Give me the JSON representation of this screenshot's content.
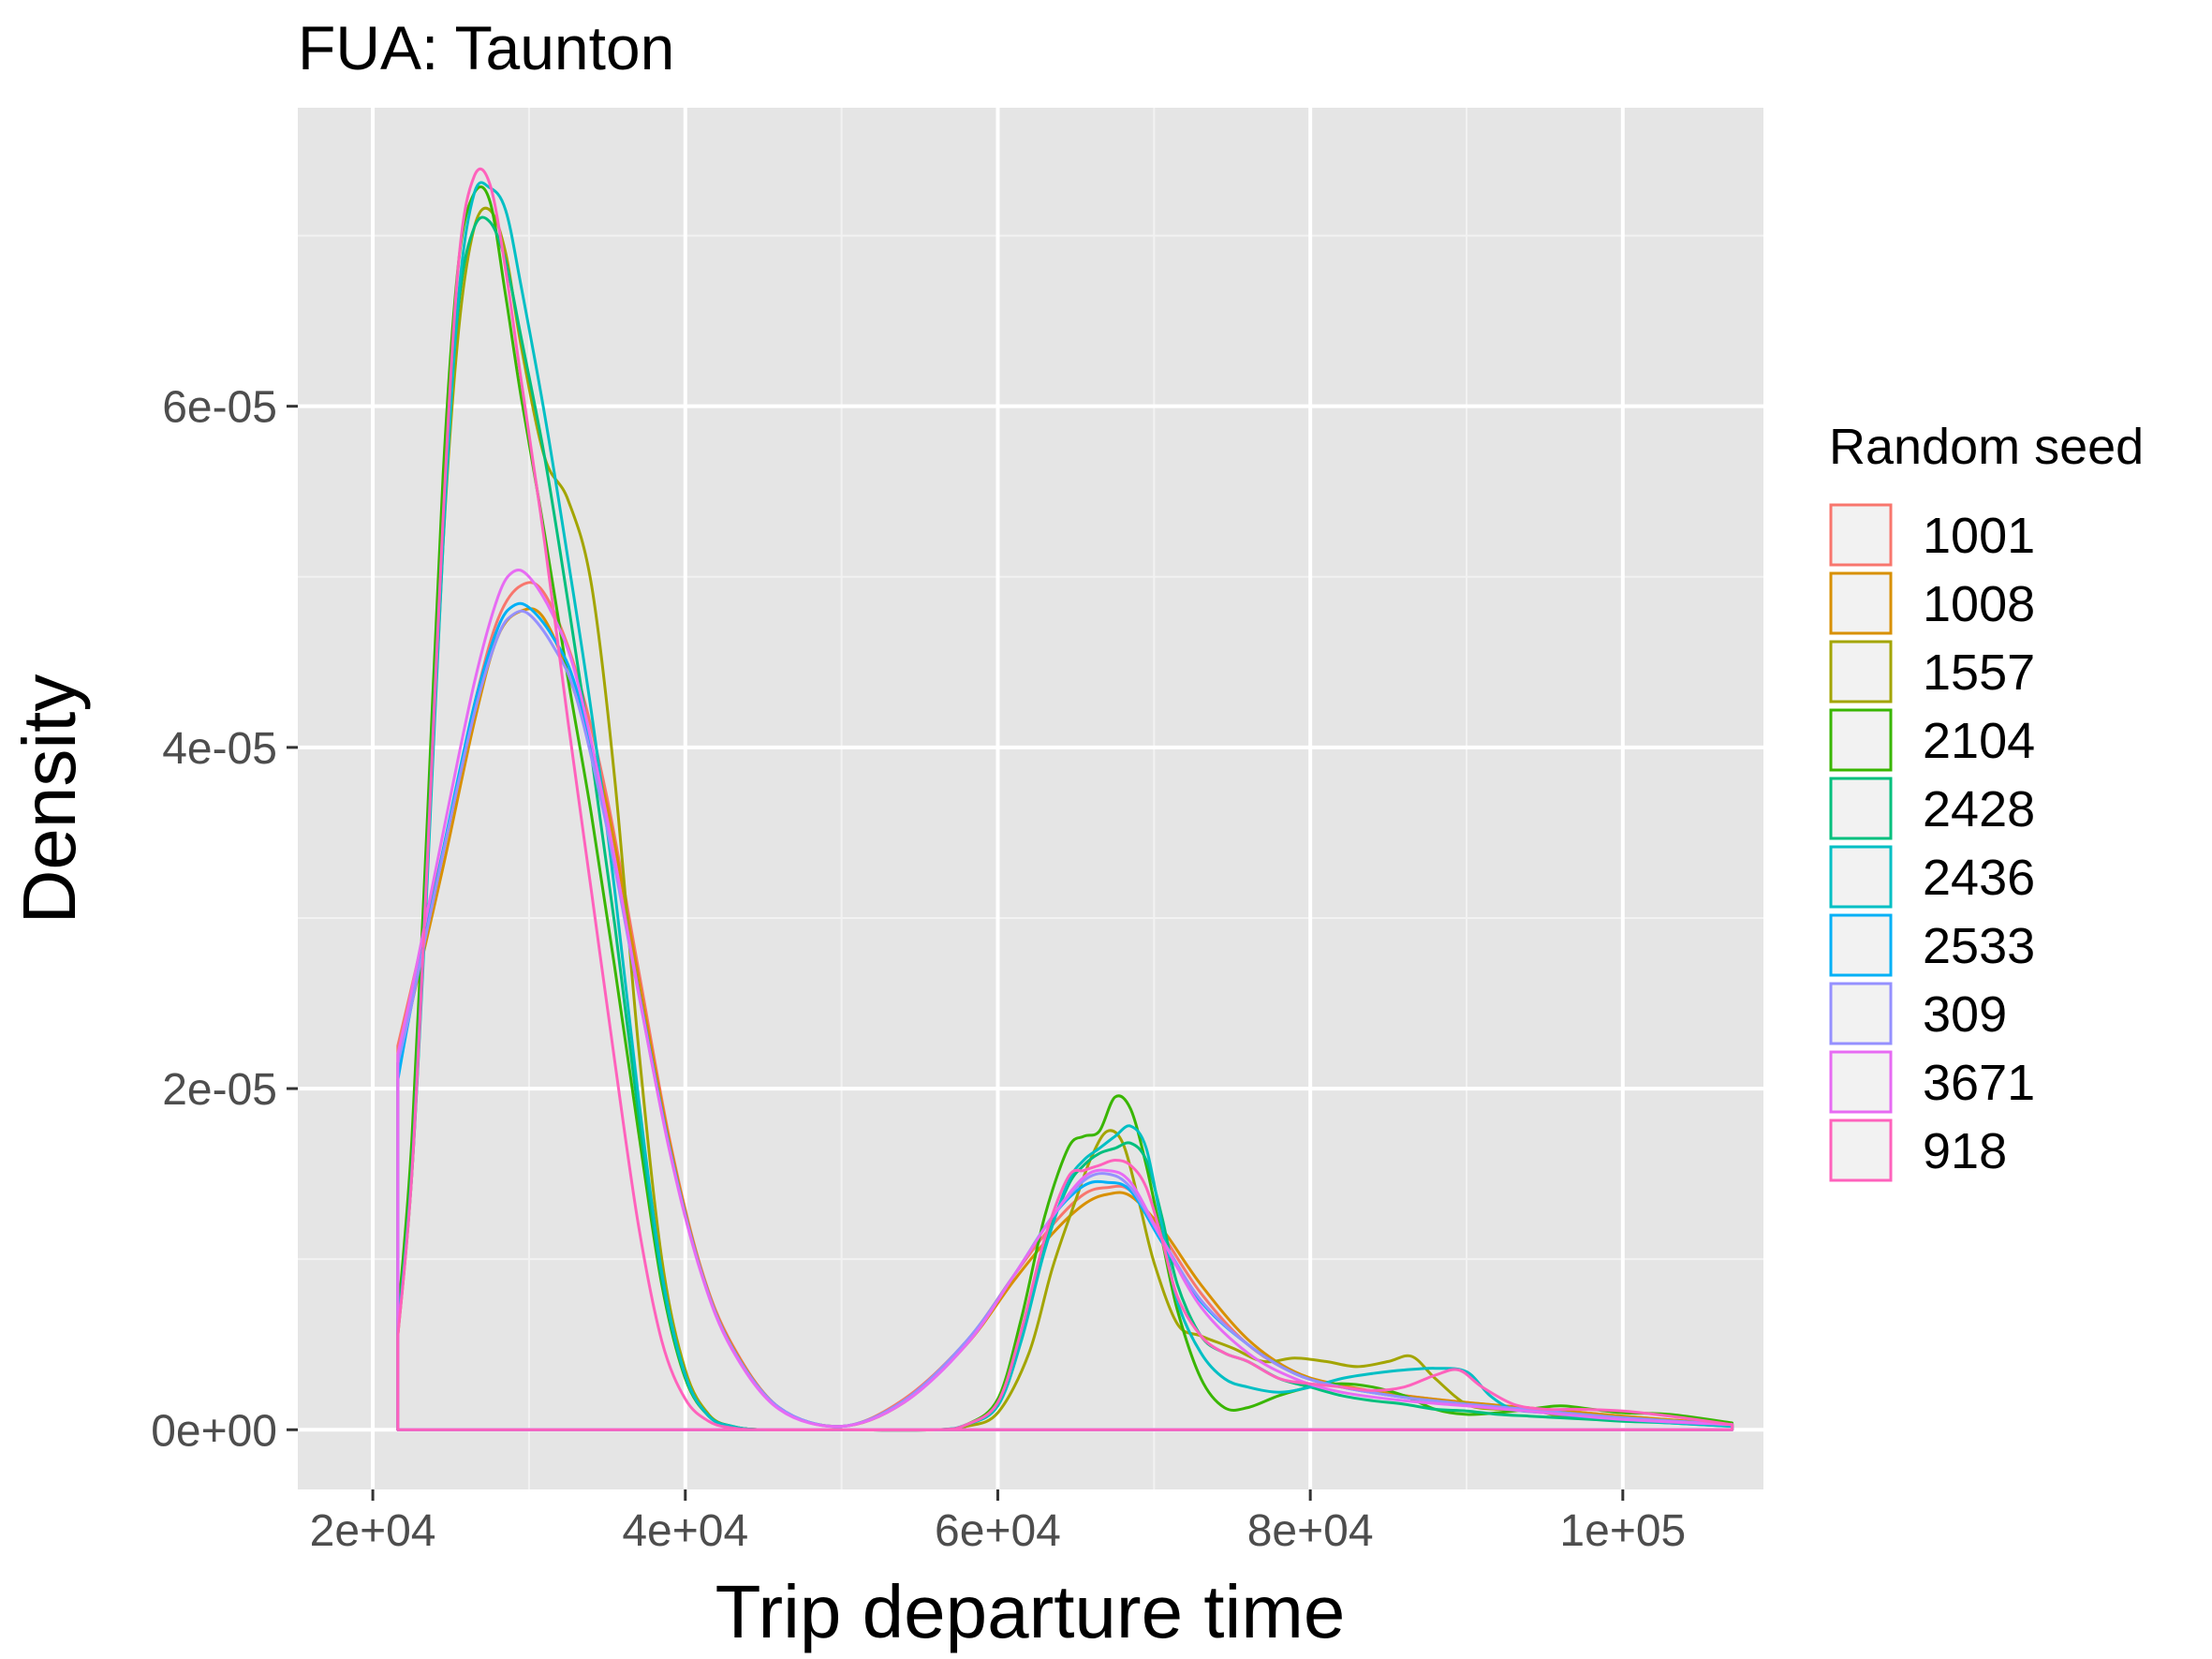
{
  "chart_data": {
    "type": "line",
    "title": "FUA: Taunton",
    "xlabel": "Trip departure time",
    "ylabel": "Density",
    "xlim": [
      15200,
      109000
    ],
    "ylim": [
      -3.5e-06,
      7.75e-05
    ],
    "x_ticks": [
      {
        "value": 20000,
        "label": "2e+04"
      },
      {
        "value": 40000,
        "label": "4e+04"
      },
      {
        "value": 60000,
        "label": "6e+04"
      },
      {
        "value": 80000,
        "label": "8e+04"
      },
      {
        "value": 100000,
        "label": "1e+05"
      }
    ],
    "y_ticks": [
      {
        "value": 0,
        "label": "0e+00"
      },
      {
        "value": 2e-05,
        "label": "2e-05"
      },
      {
        "value": 4e-05,
        "label": "4e-05"
      },
      {
        "value": 6e-05,
        "label": "6e-05"
      }
    ],
    "grid": true,
    "legend": {
      "title": "Random seed",
      "position": "right"
    },
    "series": [
      {
        "name": "1001",
        "color": "#F8766D",
        "x": [
          21600,
          22500,
          24500,
          26500,
          28000,
          29500,
          31000,
          33000,
          35000,
          37000,
          39000,
          41000,
          43000,
          46000,
          50000,
          54000,
          58000,
          61000,
          63500,
          65500,
          67000,
          68500,
          70500,
          73000,
          76000,
          79000,
          82000,
          86000,
          90000,
          95000,
          100000,
          107000
        ],
        "y": [
          2.25e-05,
          2.6e-05,
          3.4e-05,
          4.25e-05,
          4.75e-05,
          4.95e-05,
          4.9e-05,
          4.45e-05,
          3.7e-05,
          2.7e-05,
          1.7e-05,
          9.5e-06,
          5e-06,
          1.3e-06,
          2e-07,
          1.8e-06,
          5.2e-06,
          9e-06,
          1.2e-05,
          1.38e-05,
          1.42e-05,
          1.4e-05,
          1.15e-05,
          8e-06,
          5e-06,
          3.3e-06,
          2.5e-06,
          2e-06,
          1.6e-06,
          1.2e-06,
          8e-07,
          3e-07
        ]
      },
      {
        "name": "1008",
        "color": "#D89000",
        "x": [
          21600,
          22500,
          24500,
          26500,
          28000,
          29500,
          31000,
          33000,
          35000,
          37000,
          39000,
          41000,
          43000,
          46000,
          50000,
          54000,
          58000,
          61000,
          63500,
          65500,
          67000,
          68500,
          70500,
          73000,
          76000,
          79000,
          82000,
          86000,
          90000,
          95000,
          100000,
          107000
        ],
        "y": [
          2.15e-05,
          2.5e-05,
          3.3e-05,
          4.15e-05,
          4.65e-05,
          4.8e-05,
          4.75e-05,
          4.3e-05,
          3.65e-05,
          2.65e-05,
          1.68e-05,
          9.4e-06,
          4.9e-06,
          1.3e-06,
          2e-07,
          1.6e-06,
          5e-06,
          8.7e-06,
          1.15e-05,
          1.32e-05,
          1.38e-05,
          1.37e-05,
          1.18e-05,
          8.5e-06,
          5.3e-06,
          3.4e-06,
          2.6e-06,
          2e-06,
          1.6e-06,
          1.2e-06,
          8e-07,
          3e-07
        ]
      },
      {
        "name": "1557",
        "color": "#A3A500",
        "x": [
          21600,
          22500,
          23500,
          24500,
          25500,
          26500,
          27500,
          28500,
          29500,
          31000,
          32500,
          34000,
          35500,
          37000,
          38500,
          40000,
          41500,
          43000,
          45000,
          50000,
          56000,
          58000,
          60000,
          62000,
          63500,
          65000,
          66000,
          67000,
          68000,
          69000,
          70000,
          71500,
          73000,
          75000,
          77000,
          79000,
          81000,
          83000,
          85000,
          86500,
          88000,
          90000,
          92000,
          94000,
          96000,
          98000,
          100000,
          103000,
          107000
        ],
        "y": [
          5.5e-06,
          1.5e-05,
          3.3e-05,
          5.2e-05,
          6.45e-05,
          7.05e-05,
          7.15e-05,
          6.9e-05,
          6.35e-05,
          5.7e-05,
          5.45e-05,
          4.95e-05,
          3.8e-05,
          2.25e-05,
          1e-05,
          3.5e-06,
          9e-07,
          2e-07,
          0,
          0,
          0,
          2e-07,
          1e-06,
          4.5e-06,
          9.5e-06,
          1.35e-05,
          1.6e-05,
          1.75e-05,
          1.68e-05,
          1.35e-05,
          9.8e-06,
          6.2e-06,
          5.5e-06,
          4.8e-06,
          4e-06,
          4.2e-06,
          4e-06,
          3.7e-06,
          4e-06,
          4.3e-06,
          3e-06,
          1.5e-06,
          1.2e-06,
          1.2e-06,
          8e-07,
          8e-07,
          6e-07,
          5e-07,
          3e-07
        ]
      },
      {
        "name": "2104",
        "color": "#39B600",
        "x": [
          21600,
          22500,
          23500,
          24500,
          25500,
          26500,
          27500,
          28500,
          29500,
          31000,
          32500,
          34000,
          35500,
          37000,
          38500,
          40000,
          41500,
          43000,
          45000,
          50000,
          56000,
          58000,
          60000,
          61500,
          63000,
          64500,
          65500,
          66500,
          67500,
          68500,
          69500,
          70500,
          71500,
          73000,
          74500,
          76000,
          78000,
          80000,
          82000,
          84000,
          86000,
          88000,
          90000,
          92000,
          94000,
          96000,
          98000,
          100000,
          103000,
          107000
        ],
        "y": [
          6.5e-06,
          1.7e-05,
          3.6e-05,
          5.6e-05,
          6.85e-05,
          7.25e-05,
          7.2e-05,
          6.65e-05,
          6.05e-05,
          5.25e-05,
          4.4e-05,
          3.6e-05,
          2.7e-05,
          1.75e-05,
          8.5e-06,
          3e-06,
          8e-07,
          2e-07,
          0,
          0,
          0,
          3e-07,
          1.8e-06,
          6.5e-06,
          1.25e-05,
          1.65e-05,
          1.72e-05,
          1.75e-05,
          1.95e-05,
          1.88e-05,
          1.55e-05,
          1.12e-05,
          7e-06,
          3e-06,
          1.3e-06,
          1.3e-06,
          2e-06,
          2.5e-06,
          2.7e-06,
          2.5e-06,
          2e-06,
          1.2e-06,
          9e-07,
          1e-06,
          1.2e-06,
          1.4e-06,
          1.2e-06,
          1e-06,
          9e-07,
          4e-07
        ]
      },
      {
        "name": "2428",
        "color": "#00BF7D",
        "x": [
          21600,
          22500,
          23500,
          24500,
          25500,
          26500,
          27500,
          28500,
          29500,
          31000,
          32500,
          34000,
          35500,
          37000,
          38500,
          40000,
          41500,
          43000,
          45000,
          50000,
          56000,
          58000,
          60000,
          61500,
          63000,
          64500,
          65500,
          66500,
          67500,
          68500,
          69500,
          70500,
          71500,
          73000,
          74500,
          76000,
          78000,
          80000,
          82000,
          84000,
          86000,
          88000,
          90000,
          92000,
          94000,
          96000,
          98000,
          100000,
          103000,
          107000
        ],
        "y": [
          6e-06,
          1.55e-05,
          3.4e-05,
          5.35e-05,
          6.6e-05,
          7.05e-05,
          7.08e-05,
          6.85e-05,
          6.4e-05,
          5.7e-05,
          4.85e-05,
          3.95e-05,
          2.95e-05,
          1.85e-05,
          8.8e-06,
          3.1e-06,
          8e-07,
          2e-07,
          0,
          0,
          0,
          3e-07,
          1.5e-06,
          5.5e-06,
          1.08e-05,
          1.43e-05,
          1.55e-05,
          1.62e-05,
          1.65e-05,
          1.68e-05,
          1.58e-05,
          1.25e-05,
          8.5e-06,
          5.5e-06,
          4.5e-06,
          4e-06,
          3e-06,
          2.5e-06,
          2e-06,
          1.7e-06,
          1.5e-06,
          1.2e-06,
          1.1e-06,
          9e-07,
          8e-07,
          7e-07,
          6e-07,
          5e-07,
          4e-07,
          2e-07
        ]
      },
      {
        "name": "2436",
        "color": "#00BFC4",
        "x": [
          21600,
          22500,
          23500,
          24500,
          25500,
          26500,
          27500,
          28500,
          29500,
          31000,
          32500,
          34000,
          35500,
          37000,
          38500,
          40000,
          41500,
          43000,
          45000,
          50000,
          56000,
          58000,
          60000,
          61500,
          63000,
          64500,
          65500,
          66500,
          67500,
          68500,
          69500,
          70500,
          71500,
          73000,
          74500,
          76000,
          78000,
          80000,
          82000,
          84000,
          86000,
          88000,
          90000,
          91500,
          93000,
          95000,
          97000,
          100000,
          103000,
          107000
        ],
        "y": [
          5.8e-06,
          1.5e-05,
          3.25e-05,
          5.2e-05,
          6.65e-05,
          7.25e-05,
          7.28e-05,
          7.15e-05,
          6.7e-05,
          5.95e-05,
          5.1e-05,
          4.2e-05,
          3.15e-05,
          1.95e-05,
          9.2e-06,
          3.2e-06,
          8e-07,
          2e-07,
          0,
          0,
          0,
          3e-07,
          1.4e-06,
          5.2e-06,
          1.05e-05,
          1.45e-05,
          1.58e-05,
          1.65e-05,
          1.72e-05,
          1.78e-05,
          1.65e-05,
          1.2e-05,
          7.5e-06,
          4.5e-06,
          3e-06,
          2.5e-06,
          2.2e-06,
          2.5e-06,
          3e-06,
          3.3e-06,
          3.5e-06,
          3.6e-06,
          3.4e-06,
          2e-06,
          1.2e-06,
          1e-06,
          8e-07,
          6e-07,
          4e-07,
          2e-07
        ]
      },
      {
        "name": "2533",
        "color": "#00B0F6",
        "x": [
          21600,
          22500,
          24500,
          26500,
          28000,
          29000,
          30000,
          31500,
          33000,
          35000,
          37000,
          39000,
          41000,
          43000,
          46000,
          50000,
          54000,
          58000,
          61000,
          63500,
          65500,
          67000,
          68500,
          70500,
          73000,
          76000,
          79000,
          82000,
          86000,
          90000,
          95000,
          100000,
          107000
        ],
        "y": [
          2.05e-05,
          2.5e-05,
          3.4e-05,
          4.25e-05,
          4.7e-05,
          4.83e-05,
          4.82e-05,
          4.65e-05,
          4.35e-05,
          3.55e-05,
          2.58e-05,
          1.65e-05,
          9.3e-06,
          4.8e-06,
          1.3e-06,
          2e-07,
          1.7e-06,
          5.2e-06,
          9e-06,
          1.25e-05,
          1.43e-05,
          1.45e-05,
          1.4e-05,
          1.1e-05,
          7.5e-06,
          5e-06,
          3.3e-06,
          2.5e-06,
          1.9e-06,
          1.5e-06,
          1.1e-06,
          7e-07,
          3e-07
        ]
      },
      {
        "name": "309",
        "color": "#9590FF",
        "x": [
          21600,
          22500,
          24500,
          26500,
          28000,
          29000,
          30000,
          31500,
          33000,
          35000,
          37000,
          39000,
          41000,
          43000,
          46000,
          50000,
          54000,
          58000,
          61000,
          63500,
          65500,
          67000,
          68500,
          70500,
          73000,
          76000,
          79000,
          82000,
          86000,
          90000,
          95000,
          100000,
          107000
        ],
        "y": [
          2.15e-05,
          2.5e-05,
          3.38e-05,
          4.2e-05,
          4.65e-05,
          4.78e-05,
          4.78e-05,
          4.6e-05,
          4.3e-05,
          3.52e-05,
          2.56e-05,
          1.64e-05,
          9.3e-06,
          4.8e-06,
          1.3e-06,
          2e-07,
          1.7e-06,
          5.2e-06,
          9e-06,
          1.25e-05,
          1.46e-05,
          1.5e-05,
          1.42e-05,
          1.12e-05,
          7.6e-06,
          5e-06,
          3.3e-06,
          2.5e-06,
          1.9e-06,
          1.5e-06,
          1.1e-06,
          7e-07,
          3e-07
        ]
      },
      {
        "name": "3671",
        "color": "#E76BF3",
        "x": [
          21600,
          22500,
          24500,
          26500,
          28000,
          29000,
          30000,
          31500,
          33000,
          35000,
          37000,
          39000,
          41000,
          43000,
          46000,
          50000,
          54000,
          58000,
          61000,
          63500,
          65500,
          67000,
          68500,
          70500,
          73000,
          76000,
          79000,
          82000,
          86000,
          90000,
          95000,
          100000,
          107000
        ],
        "y": [
          2.2e-05,
          2.58e-05,
          3.5e-05,
          4.38e-05,
          4.88e-05,
          5.03e-05,
          5e-05,
          4.78e-05,
          4.42e-05,
          3.58e-05,
          2.57e-05,
          1.63e-05,
          9.2e-06,
          4.7e-06,
          1.2e-06,
          2e-07,
          1.6e-06,
          5e-06,
          9e-06,
          1.25e-05,
          1.48e-05,
          1.52e-05,
          1.45e-05,
          1.12e-05,
          7.2e-06,
          4.5e-06,
          3e-06,
          2.2e-06,
          1.7e-06,
          1.4e-06,
          1e-06,
          6e-07,
          3e-07
        ]
      },
      {
        "name": "918",
        "color": "#FF62BC",
        "x": [
          21600,
          22500,
          23500,
          24500,
          25500,
          26500,
          27500,
          28500,
          29500,
          31000,
          32500,
          34000,
          35500,
          37000,
          38500,
          40000,
          41500,
          43000,
          45000,
          50000,
          56000,
          58000,
          60000,
          61500,
          63000,
          64500,
          65500,
          66500,
          67500,
          68500,
          69500,
          70500,
          71500,
          73000,
          74500,
          76000,
          78000,
          80000,
          82000,
          84000,
          86000,
          88000,
          89500,
          91000,
          93000,
          95000,
          97000,
          100000,
          103000,
          107000
        ],
        "y": [
          5.5e-06,
          1.5e-05,
          3.35e-05,
          5.35e-05,
          6.85e-05,
          7.35e-05,
          7.3e-05,
          6.8e-05,
          6.15e-05,
          5.2e-05,
          4.15e-05,
          3.15e-05,
          2.15e-05,
          1.2e-05,
          5.2e-06,
          1.8e-06,
          5e-07,
          1e-07,
          0,
          0,
          0,
          3e-07,
          1.6e-06,
          5.8e-06,
          1.12e-05,
          1.48e-05,
          1.52e-05,
          1.55e-05,
          1.58e-05,
          1.55e-05,
          1.42e-05,
          1.12e-05,
          7.8e-06,
          5.5e-06,
          4.5e-06,
          4e-06,
          3e-06,
          2.7e-06,
          2.5e-06,
          2.3e-06,
          2.5e-06,
          3.2e-06,
          3.5e-06,
          2.5e-06,
          1.5e-06,
          1.2e-06,
          1.2e-06,
          1.1e-06,
          8e-07,
          3e-07
        ]
      }
    ]
  }
}
